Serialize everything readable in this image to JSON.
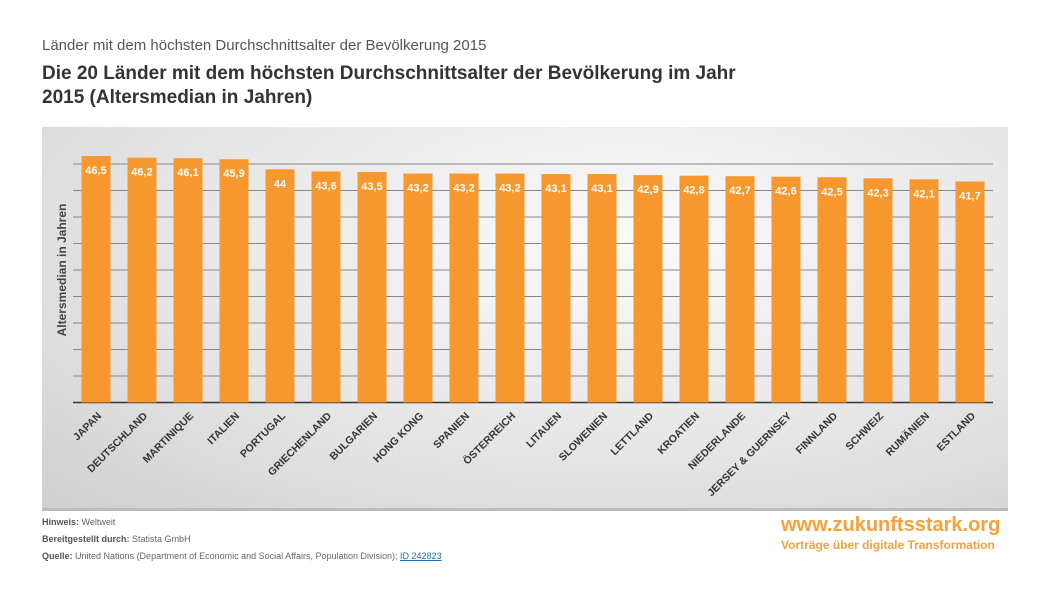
{
  "header": {
    "supertitle": "Länder mit dem höchsten Durchschnittsalter der Bevölkerung 2015"
  },
  "chart_data": {
    "type": "bar",
    "title": "Die 20 Länder mit dem höchsten Durchschnittsalter der Bevölkerung im Jahr 2015 (Altersmedian in Jahren)",
    "xlabel": "",
    "ylabel": "Altersmedian in Jahren",
    "ylim": [
      0,
      50
    ],
    "grid": true,
    "bar_color": "#f7982f",
    "categories": [
      "JAPAN",
      "DEUTSCHLAND",
      "MARTINIQUE",
      "ITALIEN",
      "PORTUGAL",
      "GRIECHENLAND",
      "BULGARIEN",
      "HONG KONG",
      "SPANIEN",
      "ÖSTERREICH",
      "LITAUEN",
      "SLOWENIEN",
      "LETTLAND",
      "KROATIEN",
      "NIEDERLANDE",
      "JERSEY & GUERNSEY",
      "FINNLAND",
      "SCHWEIZ",
      "RUMÄNIEN",
      "ESTLAND"
    ],
    "values": [
      46.5,
      46.2,
      46.1,
      45.9,
      44,
      43.6,
      43.5,
      43.2,
      43.2,
      43.2,
      43.1,
      43.1,
      42.9,
      42.8,
      42.7,
      42.6,
      42.5,
      42.3,
      42.1,
      41.7
    ],
    "data_labels": [
      "46,5",
      "46,2",
      "46,1",
      "45,9",
      "44",
      "43,6",
      "43,5",
      "43,2",
      "43,2",
      "43,2",
      "43,1",
      "43,1",
      "42,9",
      "42,8",
      "42,7",
      "42,6",
      "42,5",
      "42,3",
      "42,1",
      "41,7"
    ]
  },
  "footer": {
    "hinweis_label": "Hinweis:",
    "hinweis": "Weltweit",
    "bereit_label": "Bereitgestellt durch:",
    "bereit": "Statista GmbH",
    "quelle_label": "Quelle:",
    "quelle": "United Nations (Department of Economic and Social Affairs, Population Division);",
    "quelle_link": "ID 242823"
  },
  "brand": {
    "url": "www.zukunftsstark.org",
    "slogan": "Vorträge über digitale Transformation",
    "color": "#f7a13a"
  }
}
